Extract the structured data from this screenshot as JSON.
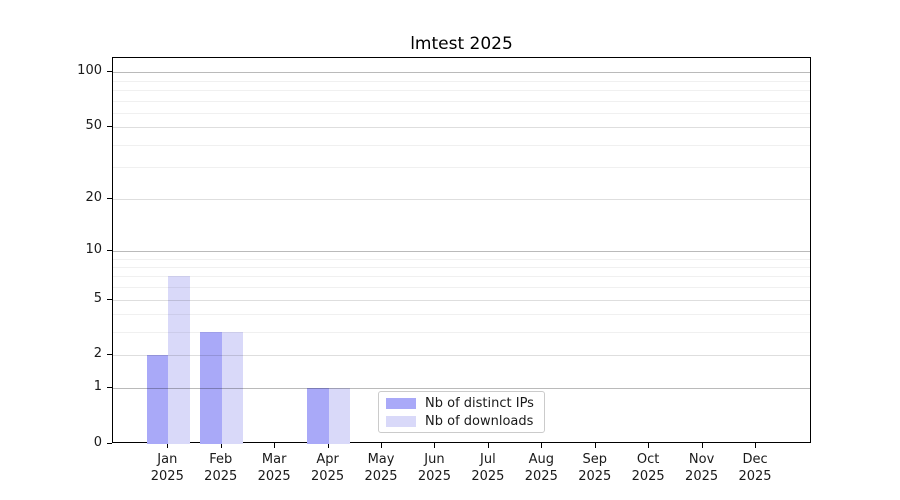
{
  "chart_data": {
    "type": "bar",
    "title": "lmtest 2025",
    "x_year": "2025",
    "categories": [
      "Jan",
      "Feb",
      "Mar",
      "Apr",
      "May",
      "Jun",
      "Jul",
      "Aug",
      "Sep",
      "Oct",
      "Nov",
      "Dec"
    ],
    "series": [
      {
        "name": "Nb of distinct IPs",
        "color": "#a9a9f8",
        "values": [
          2,
          3,
          0,
          1,
          0,
          0,
          0,
          0,
          0,
          0,
          0,
          0
        ]
      },
      {
        "name": "Nb of downloads",
        "color": "#d9d9f9",
        "values": [
          7,
          3,
          0,
          1,
          0,
          0,
          0,
          0,
          0,
          0,
          0,
          0
        ]
      }
    ],
    "yscale": "log1p",
    "ylim": [
      0,
      119
    ],
    "y_ticks": [
      0,
      1,
      2,
      5,
      10,
      20,
      50,
      100
    ],
    "y_minor_ticks": [
      3,
      4,
      6,
      7,
      8,
      9,
      30,
      40,
      60,
      70,
      80,
      90
    ],
    "grid_emphasis_ticks": [
      1,
      10,
      100
    ],
    "grid": "on",
    "legend": {
      "position": "lower center",
      "labels": [
        "Nb of distinct IPs",
        "Nb of downloads"
      ]
    }
  }
}
